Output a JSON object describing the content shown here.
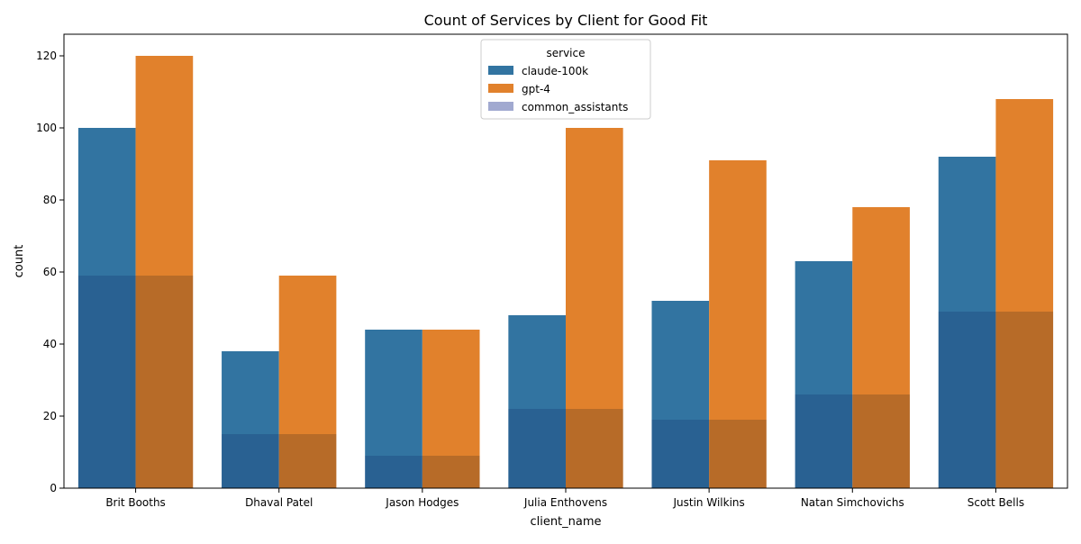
{
  "chart_data": {
    "type": "bar",
    "title": "Count of Services by Client for Good Fit",
    "xlabel": "client_name",
    "ylabel": "count",
    "ylim": [
      0,
      126
    ],
    "yticks": [
      0,
      20,
      40,
      60,
      80,
      100,
      120
    ],
    "categories": [
      "Brit Booths",
      "Dhaval Patel",
      "Jason Hodges",
      "Julia Enthovens",
      "Justin Wilkins",
      "Natan Simchovichs",
      "Scott Bells"
    ],
    "series": [
      {
        "name": "claude-100k",
        "color": "#3274a1",
        "values": [
          100,
          38,
          44,
          48,
          52,
          63,
          92
        ]
      },
      {
        "name": "gpt-4",
        "color": "#e1812c",
        "values": [
          120,
          59,
          44,
          100,
          91,
          78,
          108
        ]
      },
      {
        "name": "common_assistants",
        "color": "#a1a9d0",
        "alpha": 0.5,
        "values": [
          59,
          15,
          9,
          22,
          19,
          26,
          49
        ]
      }
    ],
    "legend": {
      "title": "service",
      "placement": "top-center"
    },
    "grid": false
  }
}
